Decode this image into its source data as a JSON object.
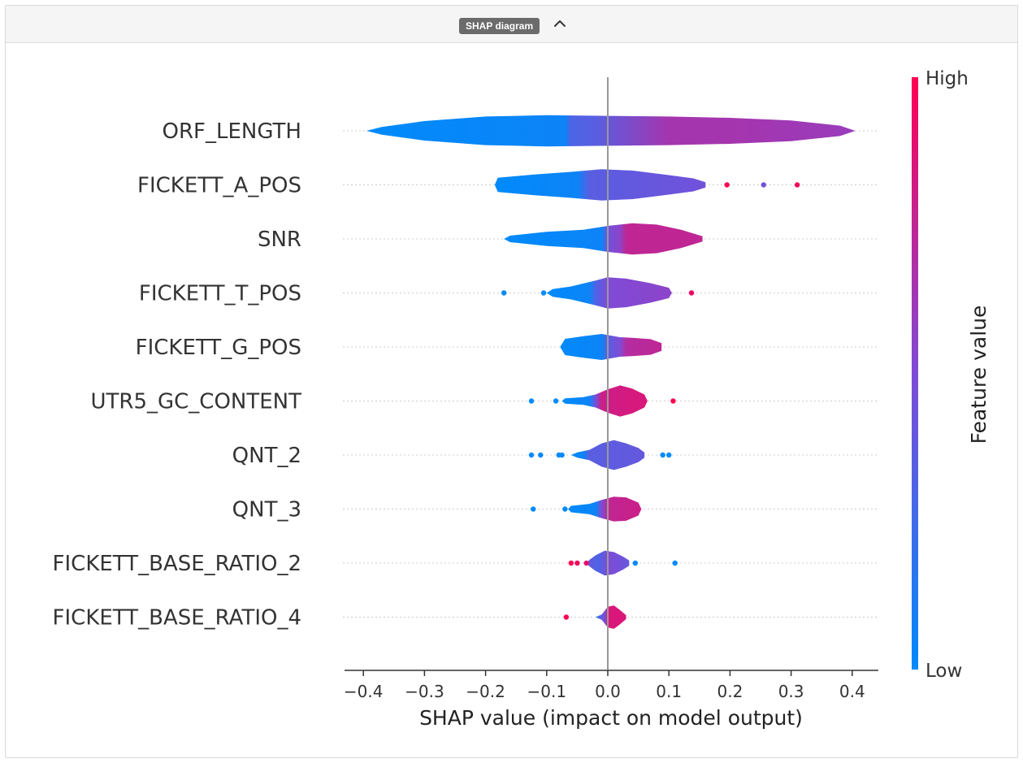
{
  "panel": {
    "title": "SHAP diagram",
    "toggle_icon": "chevron-up-icon"
  },
  "chart_data": {
    "type": "violin",
    "title": "",
    "xlabel": "SHAP value (impact on model output)",
    "ylabel": "",
    "xlim": [
      -0.43,
      0.44
    ],
    "xticks": [
      -0.4,
      -0.3,
      -0.2,
      -0.1,
      0.0,
      0.1,
      0.2,
      0.3,
      0.4
    ],
    "xtick_labels": [
      "−0.4",
      "−0.3",
      "−0.2",
      "−0.1",
      "0.0",
      "0.1",
      "0.2",
      "0.3",
      "0.4"
    ],
    "grid": "dotted horizontal per feature",
    "colorbar": {
      "label": "Feature value",
      "high_label": "High",
      "low_label": "Low",
      "colors": {
        "low": "#008afb",
        "mid": "#7f4bd6",
        "high": "#ff0052"
      }
    },
    "features": [
      {
        "name": "ORF_LENGTH",
        "range": [
          -0.395,
          0.405
        ],
        "shape": [
          [
            -0.395,
            0.0
          ],
          [
            -0.37,
            0.12
          ],
          [
            -0.3,
            0.3
          ],
          [
            -0.2,
            0.44
          ],
          [
            -0.1,
            0.48
          ],
          [
            0.0,
            0.46
          ],
          [
            0.1,
            0.44
          ],
          [
            0.2,
            0.4
          ],
          [
            0.3,
            0.32
          ],
          [
            0.38,
            0.16
          ],
          [
            0.405,
            0.0
          ]
        ],
        "color_stops": [
          [
            -0.395,
            0.0
          ],
          [
            -0.07,
            0.05
          ],
          [
            -0.06,
            0.3
          ],
          [
            -0.02,
            0.35
          ],
          [
            0.1,
            0.65
          ],
          [
            0.2,
            0.65
          ],
          [
            0.405,
            0.6
          ]
        ],
        "outliers": []
      },
      {
        "name": "FICKETT_A_POS",
        "range": [
          -0.185,
          0.16
        ],
        "shape": [
          [
            -0.185,
            0.0
          ],
          [
            -0.18,
            0.22
          ],
          [
            -0.12,
            0.32
          ],
          [
            -0.06,
            0.4
          ],
          [
            -0.01,
            0.48
          ],
          [
            0.04,
            0.44
          ],
          [
            0.1,
            0.3
          ],
          [
            0.14,
            0.2
          ],
          [
            0.16,
            0.08
          ],
          [
            0.16,
            0.0
          ]
        ],
        "color_stops": [
          [
            -0.185,
            0.0
          ],
          [
            -0.05,
            0.05
          ],
          [
            -0.03,
            0.35
          ],
          [
            0.16,
            0.45
          ]
        ],
        "outliers": [
          [
            0.195,
            1.0
          ],
          [
            0.255,
            0.45
          ],
          [
            0.31,
            0.95
          ]
        ]
      },
      {
        "name": "SNR",
        "range": [
          -0.17,
          0.155
        ],
        "shape": [
          [
            -0.17,
            0.0
          ],
          [
            -0.16,
            0.1
          ],
          [
            -0.1,
            0.22
          ],
          [
            -0.04,
            0.28
          ],
          [
            0.0,
            0.4
          ],
          [
            0.04,
            0.48
          ],
          [
            0.08,
            0.44
          ],
          [
            0.12,
            0.28
          ],
          [
            0.155,
            0.08
          ],
          [
            0.155,
            0.0
          ]
        ],
        "color_stops": [
          [
            -0.17,
            0.0
          ],
          [
            -0.01,
            0.05
          ],
          [
            0.0,
            0.45
          ],
          [
            0.02,
            0.55
          ],
          [
            0.03,
            0.75
          ],
          [
            0.155,
            0.75
          ]
        ],
        "outliers": []
      },
      {
        "name": "FICKETT_T_POS",
        "range": [
          -0.1,
          0.105
        ],
        "shape": [
          [
            -0.1,
            0.0
          ],
          [
            -0.09,
            0.12
          ],
          [
            -0.06,
            0.2
          ],
          [
            -0.02,
            0.38
          ],
          [
            0.0,
            0.48
          ],
          [
            0.03,
            0.44
          ],
          [
            0.07,
            0.3
          ],
          [
            0.1,
            0.16
          ],
          [
            0.105,
            0.0
          ]
        ],
        "color_stops": [
          [
            -0.1,
            0.0
          ],
          [
            -0.03,
            0.05
          ],
          [
            -0.02,
            0.3
          ],
          [
            0.0,
            0.5
          ],
          [
            0.105,
            0.55
          ]
        ],
        "outliers": [
          [
            -0.17,
            0.0
          ],
          [
            -0.105,
            0.0
          ],
          [
            0.137,
            0.95
          ]
        ]
      },
      {
        "name": "FICKETT_G_POS",
        "range": [
          -0.078,
          0.088
        ],
        "shape": [
          [
            -0.078,
            0.0
          ],
          [
            -0.07,
            0.25
          ],
          [
            -0.04,
            0.33
          ],
          [
            -0.01,
            0.4
          ],
          [
            0.02,
            0.3
          ],
          [
            0.04,
            0.28
          ],
          [
            0.07,
            0.24
          ],
          [
            0.088,
            0.12
          ],
          [
            0.088,
            0.0
          ]
        ],
        "color_stops": [
          [
            -0.078,
            0.0
          ],
          [
            -0.01,
            0.05
          ],
          [
            0.0,
            0.35
          ],
          [
            0.02,
            0.5
          ],
          [
            0.03,
            0.7
          ],
          [
            0.088,
            0.75
          ]
        ],
        "outliers": []
      },
      {
        "name": "UTR5_GC_CONTENT",
        "range": [
          -0.075,
          0.065
        ],
        "shape": [
          [
            -0.075,
            0.0
          ],
          [
            -0.07,
            0.08
          ],
          [
            -0.04,
            0.12
          ],
          [
            -0.02,
            0.2
          ],
          [
            0.0,
            0.36
          ],
          [
            0.02,
            0.48
          ],
          [
            0.04,
            0.38
          ],
          [
            0.06,
            0.2
          ],
          [
            0.065,
            0.0
          ]
        ],
        "color_stops": [
          [
            -0.075,
            0.0
          ],
          [
            -0.03,
            0.05
          ],
          [
            -0.02,
            0.45
          ],
          [
            -0.01,
            0.8
          ],
          [
            0.065,
            0.85
          ]
        ],
        "outliers": [
          [
            -0.125,
            0.0
          ],
          [
            -0.085,
            0.0
          ],
          [
            0.107,
            1.0
          ]
        ]
      },
      {
        "name": "QNT_2",
        "range": [
          -0.06,
          0.06
        ],
        "shape": [
          [
            -0.06,
            0.0
          ],
          [
            -0.05,
            0.08
          ],
          [
            -0.03,
            0.16
          ],
          [
            -0.01,
            0.36
          ],
          [
            0.01,
            0.46
          ],
          [
            0.03,
            0.36
          ],
          [
            0.05,
            0.22
          ],
          [
            0.06,
            0.08
          ],
          [
            0.06,
            0.0
          ]
        ],
        "color_stops": [
          [
            -0.06,
            0.0
          ],
          [
            -0.04,
            0.05
          ],
          [
            -0.03,
            0.35
          ],
          [
            0.06,
            0.4
          ]
        ],
        "outliers": [
          [
            -0.125,
            0.0
          ],
          [
            -0.11,
            0.0
          ],
          [
            -0.08,
            0.0
          ],
          [
            -0.075,
            0.0
          ],
          [
            0.09,
            0.0
          ],
          [
            0.1,
            0.0
          ]
        ]
      },
      {
        "name": "QNT_3",
        "range": [
          -0.065,
          0.055
        ],
        "shape": [
          [
            -0.065,
            0.0
          ],
          [
            -0.06,
            0.1
          ],
          [
            -0.03,
            0.16
          ],
          [
            -0.01,
            0.28
          ],
          [
            0.01,
            0.38
          ],
          [
            0.03,
            0.36
          ],
          [
            0.05,
            0.2
          ],
          [
            0.055,
            0.0
          ]
        ],
        "color_stops": [
          [
            -0.065,
            0.0
          ],
          [
            -0.02,
            0.05
          ],
          [
            -0.01,
            0.5
          ],
          [
            0.0,
            0.75
          ],
          [
            0.055,
            0.8
          ]
        ],
        "outliers": [
          [
            -0.122,
            0.0
          ],
          [
            -0.07,
            0.0
          ]
        ]
      },
      {
        "name": "FICKETT_BASE_RATIO_2",
        "range": [
          -0.035,
          0.035
        ],
        "shape": [
          [
            -0.035,
            0.0
          ],
          [
            -0.03,
            0.1
          ],
          [
            -0.02,
            0.24
          ],
          [
            -0.005,
            0.38
          ],
          [
            0.01,
            0.34
          ],
          [
            0.025,
            0.2
          ],
          [
            0.035,
            0.08
          ],
          [
            0.035,
            0.0
          ]
        ],
        "color_stops": [
          [
            -0.035,
            0.4
          ],
          [
            -0.015,
            0.3
          ],
          [
            0.0,
            0.5
          ],
          [
            0.02,
            0.45
          ],
          [
            0.035,
            0.4
          ]
        ],
        "outliers": [
          [
            -0.06,
            1.0
          ],
          [
            -0.05,
            0.95
          ],
          [
            -0.035,
            0.9
          ],
          [
            0.045,
            0.0
          ],
          [
            0.11,
            0.0
          ]
        ]
      },
      {
        "name": "FICKETT_BASE_RATIO_4",
        "range": [
          -0.02,
          0.03
        ],
        "shape": [
          [
            -0.02,
            0.0
          ],
          [
            -0.01,
            0.08
          ],
          [
            0.0,
            0.32
          ],
          [
            0.01,
            0.36
          ],
          [
            0.02,
            0.22
          ],
          [
            0.03,
            0.06
          ],
          [
            0.03,
            0.0
          ]
        ],
        "color_stops": [
          [
            -0.02,
            0.1
          ],
          [
            -0.005,
            0.5
          ],
          [
            0.0,
            0.85
          ],
          [
            0.03,
            0.85
          ]
        ],
        "outliers": [
          [
            -0.068,
            1.0
          ]
        ]
      }
    ]
  }
}
